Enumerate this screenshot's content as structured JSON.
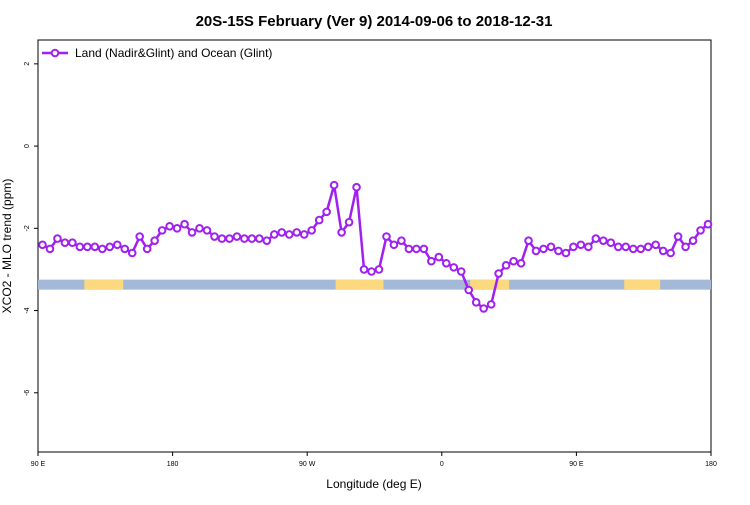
{
  "chart_data": {
    "type": "line",
    "title": "20S-15S February (Ver 9)   2014-09-06 to 2018-12-31",
    "x_label": "Longitude (deg E)",
    "y_label": "XCO2 - MLO trend (ppm)",
    "xlim": [
      90,
      540
    ],
    "ylim": [
      -7.44,
      2.58
    ],
    "xticks": [
      {
        "value": 90,
        "label": "90 E"
      },
      180,
      {
        "value": 270,
        "label": "90 W"
      },
      {
        "value": 360,
        "label": "0"
      },
      {
        "value": 450,
        "label": "90 E"
      },
      {
        "value": 540,
        "label": "180"
      }
    ],
    "yticks": [
      2,
      0,
      -2,
      -4,
      -6
    ],
    "legend": "top-left",
    "series": [
      {
        "name": "Land (Nadir&Glint) and Ocean (Glint)",
        "color": "#a020f0",
        "x": [
          93,
          98,
          103,
          108,
          113,
          118,
          123,
          128,
          133,
          138,
          143,
          148,
          153,
          158,
          163,
          168,
          173,
          178,
          183,
          188,
          193,
          198,
          203,
          208,
          213,
          218,
          223,
          228,
          233,
          238,
          243,
          248,
          253,
          258,
          263,
          268,
          273,
          278,
          283,
          288,
          293,
          298,
          303,
          308,
          313,
          318,
          323,
          328,
          333,
          338,
          343,
          348,
          353,
          358,
          363,
          368,
          373,
          378,
          383,
          388,
          393,
          398,
          403,
          408,
          413,
          418,
          423,
          428,
          433,
          438,
          443,
          448,
          453,
          458,
          463,
          468,
          473,
          478,
          483,
          488,
          493,
          498,
          503,
          508,
          513,
          518,
          523,
          528,
          533,
          538
        ],
        "values": [
          -2.4,
          -2.5,
          -2.25,
          -2.35,
          -2.35,
          -2.45,
          -2.45,
          -2.45,
          -2.5,
          -2.45,
          -2.4,
          -2.5,
          -2.6,
          -2.2,
          -2.5,
          -2.3,
          -2.05,
          -1.95,
          -2.0,
          -1.9,
          -2.1,
          -2.0,
          -2.05,
          -2.2,
          -2.25,
          -2.25,
          -2.2,
          -2.25,
          -2.25,
          -2.25,
          -2.3,
          -2.15,
          -2.1,
          -2.15,
          -2.1,
          -2.15,
          -2.05,
          -1.8,
          -1.6,
          -0.95,
          -2.1,
          -1.85,
          -1.0,
          -3.0,
          -3.05,
          -3.0,
          -2.2,
          -2.4,
          -2.3,
          -2.5,
          -2.5,
          -2.5,
          -2.8,
          -2.7,
          -2.85,
          -2.95,
          -3.05,
          -3.5,
          -3.8,
          -3.95,
          -3.85,
          -3.1,
          -2.9,
          -2.8,
          -2.85,
          -2.3,
          -2.55,
          -2.5,
          -2.45,
          -2.55,
          -2.6,
          -2.45,
          -2.4,
          -2.45,
          -2.25,
          -2.3,
          -2.35,
          -2.45,
          -2.45,
          -2.5,
          -2.5,
          -2.45,
          -2.4,
          -2.55,
          -2.6,
          -2.2,
          -2.45,
          -2.3,
          -2.05,
          -1.9
        ]
      }
    ],
    "surface_band": {
      "y": -3.37,
      "ocean_color": "#a4b8d8",
      "land_color": "#fcd97f",
      "land_ranges": [
        [
          121,
          147
        ],
        [
          289,
          321
        ],
        [
          379,
          405
        ],
        [
          482,
          506
        ]
      ]
    }
  }
}
